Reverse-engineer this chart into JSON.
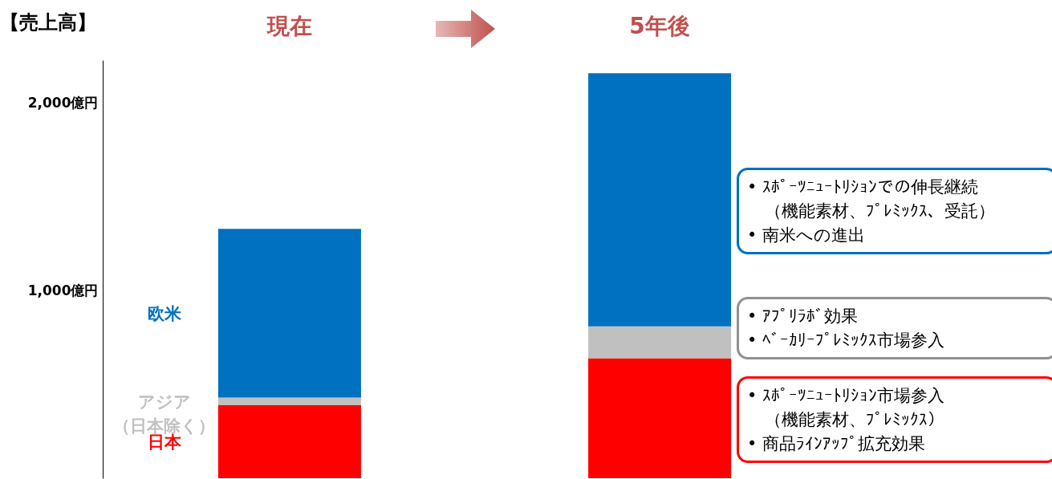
{
  "chart_data": {
    "type": "bar",
    "title": "【売上高】",
    "stacked": true,
    "categories": [
      "現在",
      "5年後"
    ],
    "series": [
      {
        "name": "日本",
        "color": "#ff0000",
        "values": [
          390,
          640
        ]
      },
      {
        "name": "アジア（日本除く）",
        "color": "#c0c0c0",
        "values": [
          40,
          170
        ]
      },
      {
        "name": "欧米",
        "color": "#0070c0",
        "values": [
          900,
          1350
        ]
      }
    ],
    "ylim": [
      0,
      2230
    ],
    "yticks": [
      {
        "value": 1000,
        "label": "1,000億円"
      },
      {
        "value": 2000,
        "label": "2,000億円"
      }
    ],
    "annotations": [
      "• ｽﾎﾟｰﾂﾆｭｰﾄﾘｼｮﾝでの伸長継続（機能素材、ﾌﾟﾚﾐｯｸｽ、受託）\n• 南米への進出",
      "• ｱﾌﾟﾘﾗﾎﾞ効果\n• ﾍﾞｰｶﾘｰﾌﾟﾚﾐｯｸｽ市場参入",
      "• ｽﾎﾟｰﾂﾆｭｰﾄﾘｼｮﾝ市場参入（機能素材、ﾌﾟﾚﾐｯｸｽ）\n• 商品ﾗｲﾝｱｯﾌﾟ拡充効果"
    ]
  }
}
